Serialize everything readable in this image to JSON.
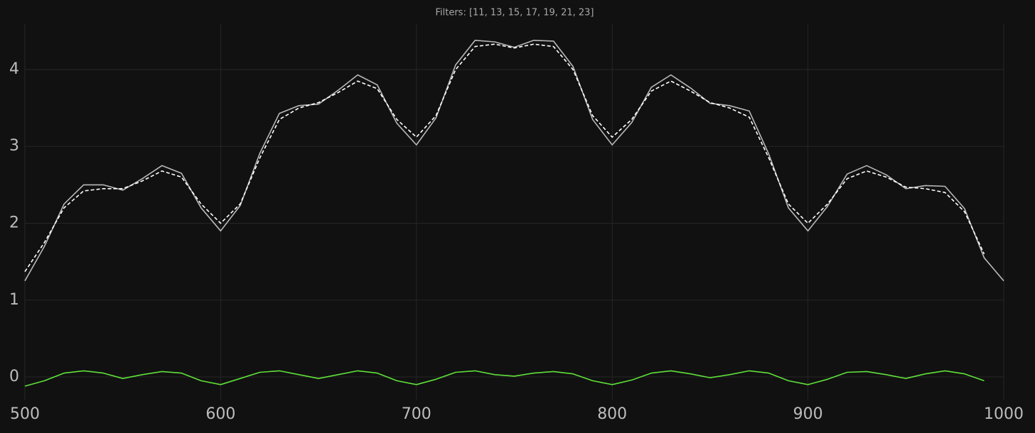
{
  "chart_data": {
    "type": "line",
    "title": "Filters: [11, 13, 15, 17, 19, 21, 23]",
    "x": [
      500,
      510,
      520,
      530,
      540,
      550,
      560,
      570,
      580,
      590,
      600,
      610,
      620,
      630,
      640,
      650,
      660,
      670,
      680,
      690,
      700,
      710,
      720,
      730,
      740,
      750,
      760,
      770,
      780,
      790,
      800,
      810,
      820,
      830,
      840,
      850,
      860,
      870,
      880,
      890,
      900,
      910,
      920,
      930,
      940,
      950,
      960,
      970,
      980,
      990,
      1000
    ],
    "series": [
      {
        "color": "#b8b8b8",
        "dash": false,
        "values": [
          1.25,
          1.7,
          2.25,
          2.5,
          2.5,
          2.43,
          2.58,
          2.75,
          2.65,
          2.2,
          1.9,
          2.23,
          2.91,
          3.43,
          3.53,
          3.55,
          3.73,
          3.93,
          3.8,
          3.3,
          3.02,
          3.37,
          4.06,
          4.38,
          4.36,
          4.29,
          4.38,
          4.37,
          4.04,
          3.35,
          3.02,
          3.31,
          3.77,
          3.93,
          3.76,
          3.56,
          3.53,
          3.46,
          2.9,
          2.2,
          1.9,
          2.22,
          2.64,
          2.75,
          2.63,
          2.45,
          2.49,
          2.48,
          2.19,
          1.55,
          1.25
        ]
      },
      {
        "color": "#ffffff",
        "dash": true,
        "values": [
          1.37,
          1.75,
          2.2,
          2.42,
          2.45,
          2.45,
          2.55,
          2.68,
          2.6,
          2.25,
          2.0,
          2.25,
          2.85,
          3.35,
          3.5,
          3.57,
          3.7,
          3.85,
          3.75,
          3.35,
          3.12,
          3.4,
          4.0,
          4.3,
          4.33,
          4.28,
          4.33,
          4.3,
          4.0,
          3.4,
          3.12,
          3.35,
          3.72,
          3.85,
          3.72,
          3.57,
          3.5,
          3.38,
          2.85,
          2.25,
          2.0,
          2.25,
          2.58,
          2.68,
          2.6,
          2.47,
          2.45,
          2.4,
          2.15,
          1.6,
          null
        ]
      },
      {
        "color": "#5fe03a",
        "dash": false,
        "values": [
          -0.12,
          -0.05,
          0.05,
          0.08,
          0.05,
          -0.02,
          0.03,
          0.07,
          0.05,
          -0.05,
          -0.1,
          -0.02,
          0.06,
          0.08,
          0.03,
          -0.02,
          0.03,
          0.08,
          0.05,
          -0.05,
          -0.1,
          -0.03,
          0.06,
          0.08,
          0.03,
          0.01,
          0.05,
          0.07,
          0.04,
          -0.05,
          -0.1,
          -0.04,
          0.05,
          0.08,
          0.04,
          -0.01,
          0.03,
          0.08,
          0.05,
          -0.05,
          -0.1,
          -0.03,
          0.06,
          0.07,
          0.03,
          -0.02,
          0.04,
          0.08,
          0.04,
          -0.05,
          null
        ]
      }
    ],
    "xlim": [
      500,
      1000
    ],
    "ylim": [
      -0.3,
      4.6
    ],
    "xticks": [
      500,
      600,
      700,
      800,
      900,
      1000
    ],
    "yticks": [
      0,
      1,
      2,
      3,
      4
    ],
    "grid": true
  }
}
